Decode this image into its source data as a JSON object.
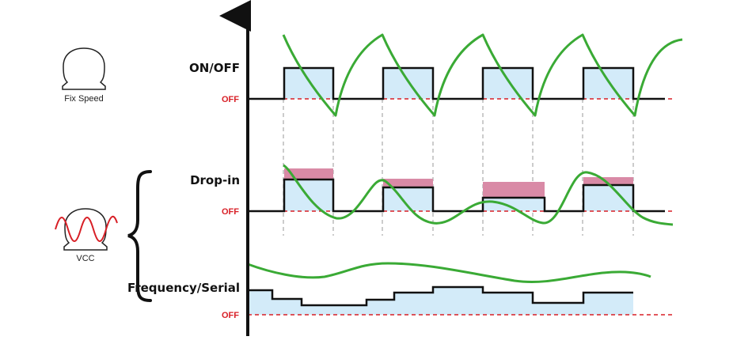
{
  "rows": {
    "on_off": {
      "label": "ON/OFF",
      "off_label": "OFF"
    },
    "drop_in": {
      "label": "Drop-in",
      "off_label": "OFF"
    },
    "frequency": {
      "label": "Frequency/Serial",
      "off_label": "OFF"
    }
  },
  "icons": {
    "fix_speed": {
      "caption": "Fix Speed",
      "icon": "compressor-icon"
    },
    "vcc": {
      "caption": "VCC",
      "icon": "compressor-sine-icon"
    }
  },
  "colors": {
    "on_fill": "#d3ebf9",
    "excess_fill": "#d98aa6",
    "temperature_curve": "#3aaa35",
    "off_line": "#d81f26",
    "signal_line": "#111111",
    "axis": "#111111"
  }
}
